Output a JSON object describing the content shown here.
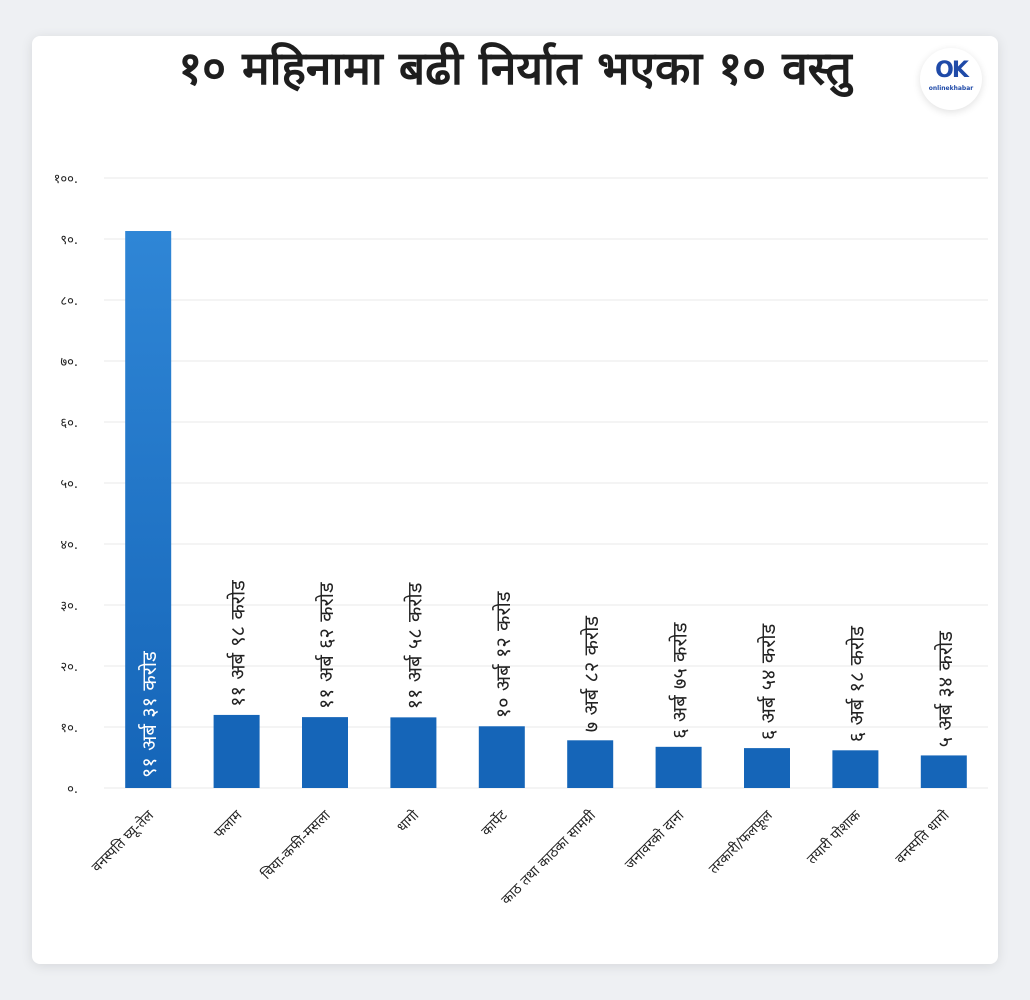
{
  "header": {
    "title": "१० महिनामा बढी निर्यात भएका १० वस्तु",
    "logo_mark": "OK",
    "logo_text": "onlinekhabar"
  },
  "colors": {
    "bar": "#1565b8",
    "bar_highlight_top": "#2f86d6",
    "grid": "#e8e8e8",
    "text": "#222222",
    "bar_label_inside": "#ffffff"
  },
  "chart_data": {
    "type": "bar",
    "title": "१० महिनामा बढी निर्यात भएका १० वस्तु",
    "xlabel": "",
    "ylabel": "",
    "ylim": [
      0,
      100
    ],
    "y_ticks": [
      0,
      10,
      20,
      30,
      40,
      50,
      60,
      70,
      80,
      90,
      100
    ],
    "y_tick_labels": [
      "०.",
      "१०.",
      "२०.",
      "३०.",
      "४०.",
      "५०.",
      "६०.",
      "७०.",
      "८०.",
      "९०.",
      "१००."
    ],
    "grid": true,
    "categories": [
      "वनस्पति घ्यू-तेल",
      "फलाम",
      "चिया-कफी-मसला",
      "धागो",
      "कार्पेट",
      "काठ तथा काठका सामग्री",
      "जनावरको दाना",
      "तरकारी/फलफूल",
      "तयारी पोशाक",
      "वनस्पति धागो"
    ],
    "values": [
      91.31,
      11.98,
      11.62,
      11.58,
      10.12,
      7.82,
      6.75,
      6.54,
      6.18,
      5.34
    ],
    "data_labels": [
      "९१ अर्ब ३१ करोड",
      "११ अर्ब ९८ करोड",
      "११ अर्ब ६२ करोड",
      "११ अर्ब ५८ करोड",
      "१० अर्ब १२ करोड",
      "७ अर्ब ८२ करोड",
      "६ अर्ब ७५ करोड",
      "६ अर्ब ५४ करोड",
      "६ अर्ब १८ करोड",
      "५ अर्ब ३४ करोड"
    ]
  }
}
